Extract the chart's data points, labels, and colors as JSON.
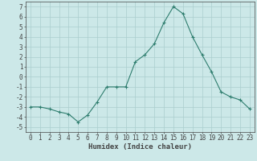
{
  "x": [
    0,
    1,
    2,
    3,
    4,
    5,
    6,
    7,
    8,
    9,
    10,
    11,
    12,
    13,
    14,
    15,
    16,
    17,
    18,
    19,
    20,
    21,
    22,
    23
  ],
  "y": [
    -3,
    -3,
    -3.2,
    -3.5,
    -3.7,
    -4.5,
    -3.8,
    -2.5,
    -1,
    -1,
    -1,
    1.5,
    2.2,
    3.3,
    5.4,
    7.0,
    6.3,
    4.0,
    2.2,
    0.5,
    -1.5,
    -2.0,
    -2.3,
    -3.2
  ],
  "xlabel": "Humidex (Indice chaleur)",
  "xlim": [
    -0.5,
    23.5
  ],
  "ylim": [
    -5.5,
    7.5
  ],
  "yticks": [
    -5,
    -4,
    -3,
    -2,
    -1,
    0,
    1,
    2,
    3,
    4,
    5,
    6,
    7
  ],
  "xticks": [
    0,
    1,
    2,
    3,
    4,
    5,
    6,
    7,
    8,
    9,
    10,
    11,
    12,
    13,
    14,
    15,
    16,
    17,
    18,
    19,
    20,
    21,
    22,
    23
  ],
  "line_color": "#2e7d6e",
  "marker": "+",
  "bg_color": "#cce8e8",
  "grid_color": "#aacece",
  "axis_color": "#444444",
  "label_fontsize": 6.5,
  "tick_fontsize": 5.5
}
